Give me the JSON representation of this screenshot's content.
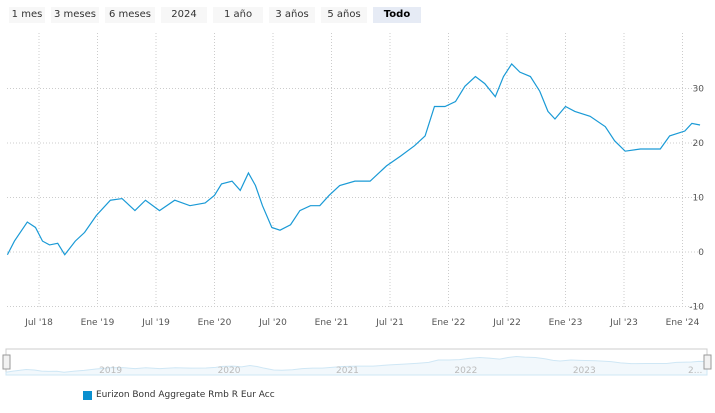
{
  "range_buttons": [
    "1 mes",
    "3 meses",
    "6 meses",
    "2024",
    "1 año",
    "3 años",
    "5 años",
    "Todo"
  ],
  "selected_range": "Todo",
  "chart_data": {
    "type": "line",
    "series": [
      {
        "name": "Eurizon Bond Aggregate Rmb R Eur Acc",
        "color": "#1a9ad6",
        "x": [
          2018.23,
          2018.29,
          2018.4,
          2018.47,
          2018.53,
          2018.59,
          2018.66,
          2018.72,
          2018.81,
          2018.89,
          2018.99,
          2019.11,
          2019.21,
          2019.32,
          2019.41,
          2019.53,
          2019.66,
          2019.79,
          2019.92,
          2020.0,
          2020.06,
          2020.15,
          2020.22,
          2020.29,
          2020.35,
          2020.41,
          2020.49,
          2020.56,
          2020.65,
          2020.73,
          2020.82,
          2020.9,
          2020.98,
          2021.07,
          2021.2,
          2021.33,
          2021.47,
          2021.59,
          2021.71,
          2021.8,
          2021.88,
          2021.97,
          2022.06,
          2022.14,
          2022.23,
          2022.31,
          2022.4,
          2022.47,
          2022.54,
          2022.61,
          2022.7,
          2022.78,
          2022.85,
          2022.91,
          2023.0,
          2023.08,
          2023.21,
          2023.34,
          2023.42,
          2023.51,
          2023.64,
          2023.81,
          2023.89,
          2024.02,
          2024.08,
          2024.15
        ],
        "y": [
          -0.5,
          2,
          5.5,
          4.5,
          2,
          1.3,
          1.6,
          -0.5,
          2,
          3.6,
          6.7,
          9.5,
          9.8,
          7.6,
          9.5,
          7.6,
          9.5,
          8.5,
          9,
          10.4,
          12.5,
          13,
          11.3,
          14.5,
          12.2,
          8.5,
          4.5,
          4,
          5,
          7.6,
          8.5,
          8.5,
          10.4,
          12.2,
          13,
          13,
          15.8,
          17.6,
          19.5,
          21.3,
          26.7,
          26.7,
          27.6,
          30.4,
          32.2,
          30.9,
          28.5,
          32.2,
          34.5,
          33,
          32.2,
          29.5,
          25.8,
          24.4,
          26.7,
          25.8,
          24.9,
          23,
          20.4,
          18.5,
          18.9,
          18.9,
          21.3,
          22.2,
          23.6,
          23.3
        ]
      }
    ],
    "x_ticks": [
      {
        "v": 2018.5,
        "label": "Jul '18"
      },
      {
        "v": 2019.0,
        "label": "Ene '19"
      },
      {
        "v": 2019.5,
        "label": "Jul '19"
      },
      {
        "v": 2020.0,
        "label": "Ene '20"
      },
      {
        "v": 2020.5,
        "label": "Jul '20"
      },
      {
        "v": 2021.0,
        "label": "Ene '21"
      },
      {
        "v": 2021.5,
        "label": "Jul '21"
      },
      {
        "v": 2022.0,
        "label": "Ene '22"
      },
      {
        "v": 2022.5,
        "label": "Jul '22"
      },
      {
        "v": 2023.0,
        "label": "Ene '23"
      },
      {
        "v": 2023.5,
        "label": "Jul '23"
      },
      {
        "v": 2024.0,
        "label": "Ene '24"
      }
    ],
    "y_ticks": [
      -10,
      0,
      10,
      20,
      30
    ],
    "ylim": [
      -10,
      40
    ],
    "navigator_labels": [
      "2019",
      "2020",
      "2021",
      "2022",
      "2023",
      "2..."
    ],
    "legend": "bottom-left"
  }
}
